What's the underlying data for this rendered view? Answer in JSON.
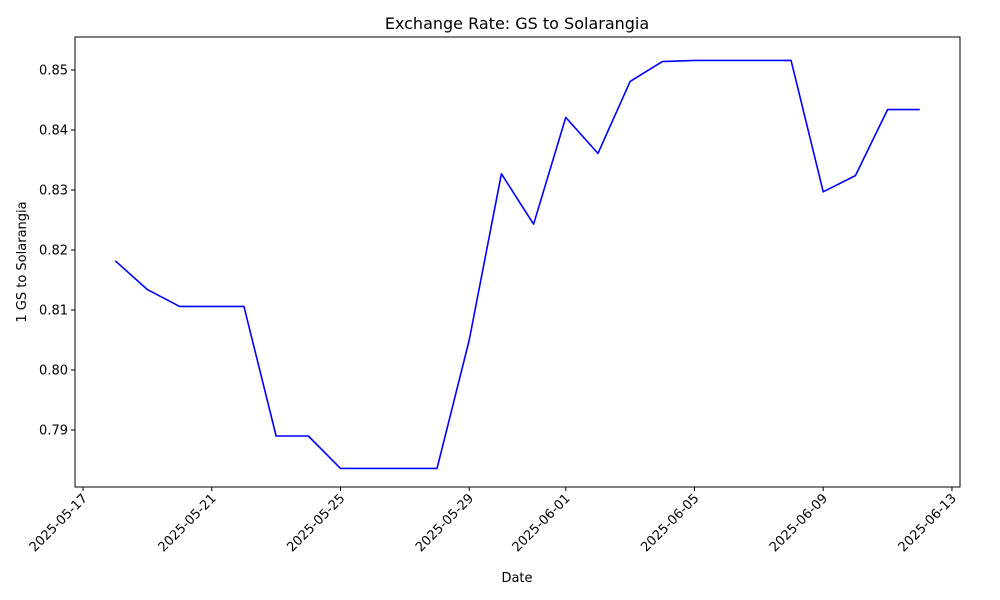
{
  "chart_data": {
    "type": "line",
    "title": "Exchange Rate: GS to Solarangia",
    "xlabel": "Date",
    "ylabel": "1 GS to Solarangia",
    "x_ticks": [
      "2025-05-17",
      "2025-05-21",
      "2025-05-25",
      "2025-05-29",
      "2025-06-01",
      "2025-06-05",
      "2025-06-09",
      "2025-06-13"
    ],
    "y_ticks": [
      "0.79",
      "0.80",
      "0.81",
      "0.82",
      "0.83",
      "0.84",
      "0.85"
    ],
    "ylim": [
      0.7805,
      0.8555
    ],
    "xlim": [
      "2025-05-16T18:00",
      "2025-06-13T06:00"
    ],
    "grid": false,
    "series": [
      {
        "color": "#0000ff",
        "x": [
          "2025-05-18",
          "2025-05-19",
          "2025-05-20",
          "2025-05-21",
          "2025-05-22",
          "2025-05-23",
          "2025-05-24",
          "2025-05-25",
          "2025-05-26",
          "2025-05-27",
          "2025-05-28",
          "2025-05-29",
          "2025-05-30",
          "2025-05-31",
          "2025-06-01",
          "2025-06-02",
          "2025-06-03",
          "2025-06-04",
          "2025-06-05",
          "2025-06-06",
          "2025-06-07",
          "2025-06-08",
          "2025-06-09",
          "2025-06-10",
          "2025-06-11",
          "2025-06-12"
        ],
        "y": [
          0.8182,
          0.8134,
          0.8106,
          0.8106,
          0.8106,
          0.789,
          0.789,
          0.7836,
          0.7836,
          0.7836,
          0.7836,
          0.805,
          0.8327,
          0.8243,
          0.8421,
          0.8361,
          0.8481,
          0.8514,
          0.8516,
          0.8516,
          0.8516,
          0.8516,
          0.8297,
          0.8324,
          0.8434,
          0.8434
        ]
      }
    ]
  }
}
